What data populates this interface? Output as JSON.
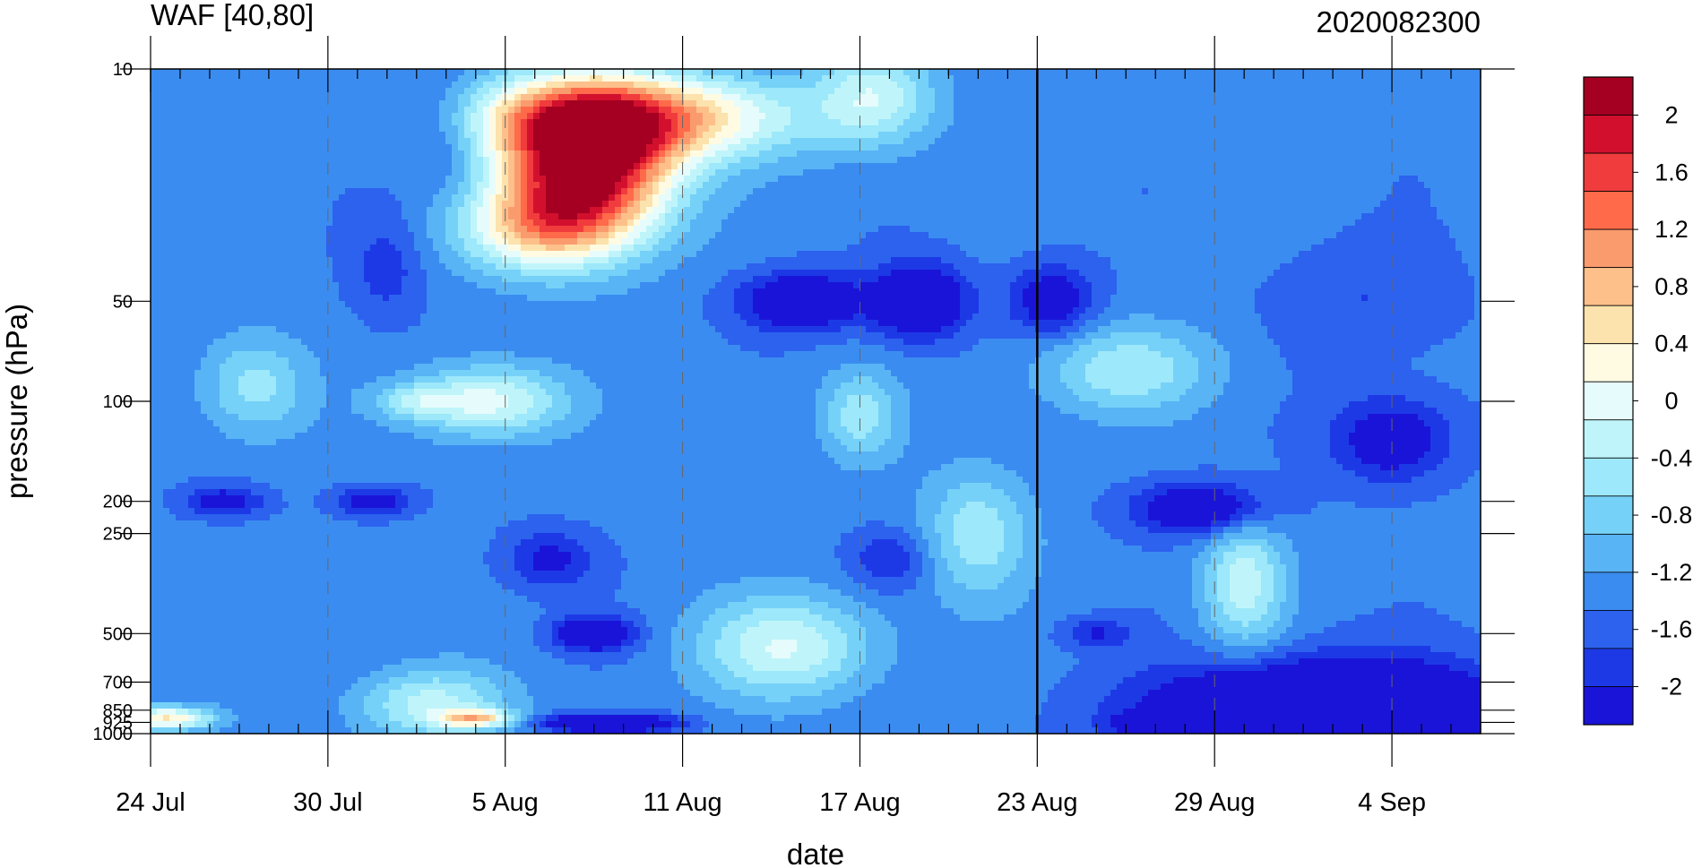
{
  "chart_data": {
    "type": "heatmap",
    "title": "WAF [40,80]",
    "subtitle": "2020082300",
    "xlabel": "date",
    "ylabel": "pressure (hPa)",
    "x_tick_labels": [
      "24 Jul",
      "30 Jul",
      "5 Aug",
      "11 Aug",
      "17 Aug",
      "23 Aug",
      "29 Aug",
      "4 Sep"
    ],
    "y_tick_labels": [
      "10",
      "50",
      "100",
      "200",
      "250",
      "500",
      "700",
      "850",
      "925",
      "1000"
    ],
    "y_levels_hPa": [
      10,
      50,
      100,
      200,
      250,
      500,
      700,
      850,
      925,
      1000
    ],
    "y_scale": "log",
    "x_range_days_from_24Jul": [
      0,
      45
    ],
    "reference_line_date": "23 Aug",
    "colorbar": {
      "tick_labels": [
        "2",
        "1.6",
        "1.2",
        "0.8",
        "0.4",
        "0",
        "-0.4",
        "-0.8",
        "-1.2",
        "-1.6",
        "-2"
      ],
      "colors": [
        "#a50021",
        "#d2102e",
        "#f03c3c",
        "#ff6a4a",
        "#fa9b6e",
        "#fdc08a",
        "#fce2ac",
        "#fffbe3",
        "#e6fcfc",
        "#bff5fa",
        "#9de8fa",
        "#76d1f8",
        "#58b4f5",
        "#3b8cf0",
        "#2c62ee",
        "#1d39e6",
        "#1a14d8"
      ]
    },
    "blobs": [
      {
        "day": 0.5,
        "p": 900,
        "rd": 1.6,
        "rp": 0.08,
        "v": 1.0
      },
      {
        "day": 3.5,
        "p": 90,
        "rd": 1.8,
        "rp": 0.35,
        "v": 0.3
      },
      {
        "day": 2.5,
        "p": 200,
        "rd": 1.3,
        "rp": 0.1,
        "v": -1.0
      },
      {
        "day": 7.5,
        "p": 200,
        "rd": 1.3,
        "rp": 0.1,
        "v": -1.0
      },
      {
        "day": 8.0,
        "p": 40,
        "rd": 1.2,
        "rp": 0.35,
        "v": -0.7
      },
      {
        "day": 9.0,
        "p": 100,
        "rd": 1.5,
        "rp": 0.12,
        "v": 0.2
      },
      {
        "day": 9.5,
        "p": 820,
        "rd": 2.5,
        "rp": 0.25,
        "v": 0.5
      },
      {
        "day": 10.0,
        "p": 15,
        "rd": 1.5,
        "rp": 0.4,
        "v": -0.8
      },
      {
        "day": 11.0,
        "p": 900,
        "rd": 1.2,
        "rp": 0.06,
        "v": 0.9
      },
      {
        "day": 11.5,
        "p": 100,
        "rd": 2.5,
        "rp": 0.25,
        "v": 0.7
      },
      {
        "day": 13.0,
        "p": 30,
        "rd": 2.6,
        "rp": 0.3,
        "v": 0.8
      },
      {
        "day": 14.8,
        "p": 20,
        "rd": 2.8,
        "rp": 0.5,
        "v": 2.4
      },
      {
        "day": 16.0,
        "p": 14,
        "rd": 5.5,
        "rp": 0.3,
        "v": 1.5
      },
      {
        "day": 13.5,
        "p": 300,
        "rd": 1.5,
        "rp": 0.2,
        "v": -0.9
      },
      {
        "day": 15.0,
        "p": 500,
        "rd": 1.3,
        "rp": 0.12,
        "v": -1.3
      },
      {
        "day": 15.5,
        "p": 930,
        "rd": 2.2,
        "rp": 0.06,
        "v": -1.6
      },
      {
        "day": 21.5,
        "p": 550,
        "rd": 3.0,
        "rp": 0.35,
        "v": 0.6
      },
      {
        "day": 22.0,
        "p": 50,
        "rd": 2.0,
        "rp": 0.2,
        "v": -1.3
      },
      {
        "day": 24.0,
        "p": 110,
        "rd": 1.3,
        "rp": 0.3,
        "v": 0.3
      },
      {
        "day": 24.5,
        "p": 12,
        "rd": 2.0,
        "rp": 0.35,
        "v": 0.5
      },
      {
        "day": 25.0,
        "p": 300,
        "rd": 1.3,
        "rp": 0.2,
        "v": -0.8
      },
      {
        "day": 26.0,
        "p": 50,
        "rd": 1.6,
        "rp": 0.25,
        "v": -1.4
      },
      {
        "day": 28.0,
        "p": 250,
        "rd": 1.8,
        "rp": 0.45,
        "v": 0.35
      },
      {
        "day": 30.5,
        "p": 50,
        "rd": 1.4,
        "rp": 0.25,
        "v": -1.1
      },
      {
        "day": 33.0,
        "p": 80,
        "rd": 3.0,
        "rp": 0.3,
        "v": 0.35
      },
      {
        "day": 32.0,
        "p": 500,
        "rd": 1.2,
        "rp": 0.1,
        "v": -0.8
      },
      {
        "day": 35.5,
        "p": 210,
        "rd": 2.2,
        "rp": 0.18,
        "v": -1.3
      },
      {
        "day": 34.0,
        "p": 930,
        "rd": 1.3,
        "rp": 0.06,
        "v": -1.0
      },
      {
        "day": 37.0,
        "p": 350,
        "rd": 1.4,
        "rp": 0.45,
        "v": 0.5
      },
      {
        "day": 40.0,
        "p": 900,
        "rd": 5.5,
        "rp": 0.35,
        "v": -2.3
      },
      {
        "day": 42.0,
        "p": 130,
        "rd": 2.0,
        "rp": 0.3,
        "v": -1.1
      },
      {
        "day": 41.0,
        "p": 50,
        "rd": 3.0,
        "rp": 0.4,
        "v": -0.6
      }
    ]
  }
}
